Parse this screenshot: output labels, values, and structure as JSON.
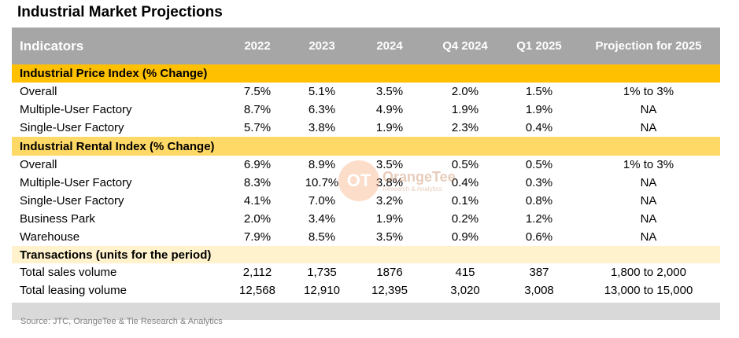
{
  "title": "Industrial Market Projections",
  "header": {
    "indicators": "Indicators",
    "columns": [
      "2022",
      "2023",
      "2024",
      "Q4 2024",
      "Q1 2025",
      "Projection for 2025"
    ]
  },
  "sections": [
    {
      "title": "Industrial Price Index (% Change)",
      "rows": [
        {
          "label": "Overall",
          "values": [
            "7.5%",
            "5.1%",
            "3.5%",
            "2.0%",
            "1.5%",
            "1% to 3%"
          ]
        },
        {
          "label": "Multiple-User Factory",
          "values": [
            "8.7%",
            "6.3%",
            "4.9%",
            "1.9%",
            "1.9%",
            "NA"
          ]
        },
        {
          "label": "Single-User Factory",
          "values": [
            "5.7%",
            "3.8%",
            "1.9%",
            "2.3%",
            "0.4%",
            "NA"
          ]
        }
      ]
    },
    {
      "title": "Industrial Rental Index (% Change)",
      "rows": [
        {
          "label": "Overall",
          "values": [
            "6.9%",
            "8.9%",
            "3.5%",
            "0.5%",
            "0.5%",
            "1% to 3%"
          ]
        },
        {
          "label": "Multiple-User Factory",
          "values": [
            "8.3%",
            "10.7%",
            "3.8%",
            "0.4%",
            "0.3%",
            "NA"
          ]
        },
        {
          "label": "Single-User Factory",
          "values": [
            "4.1%",
            "7.0%",
            "3.2%",
            "0.1%",
            "0.8%",
            "NA"
          ]
        },
        {
          "label": "Business Park",
          "values": [
            "2.0%",
            "3.4%",
            "1.9%",
            "0.2%",
            "1.2%",
            "NA"
          ]
        },
        {
          "label": "Warehouse",
          "values": [
            "7.9%",
            "8.5%",
            "3.5%",
            "0.9%",
            "0.6%",
            "NA"
          ]
        }
      ]
    },
    {
      "title": "Transactions (units for the period)",
      "rows": [
        {
          "label": "Total sales volume",
          "values": [
            "2,112",
            "1,735",
            "1876",
            "415",
            "387",
            "1,800 to 2,000"
          ]
        },
        {
          "label": "Total leasing volume",
          "values": [
            "12,568",
            "12,910",
            "12,395",
            "3,020",
            "3,008",
            "13,000 to 15,000"
          ]
        }
      ]
    }
  ],
  "source": "Source: JTC, OrangeTee & Tie Research & Analytics",
  "watermark": {
    "mark": "OT",
    "brand": "OrangeTee",
    "sub": "Research & Analytics"
  },
  "colors": {
    "header_bg": "#a6a6a6",
    "section1_bg": "#ffc000",
    "section2_bg": "#ffd966",
    "section3_bg": "#fff2cc",
    "footer_bar": "#d9d9d9"
  }
}
